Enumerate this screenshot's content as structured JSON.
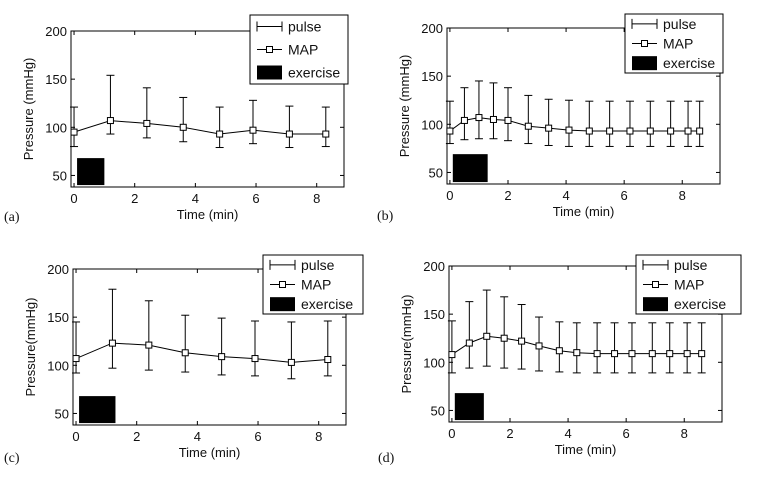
{
  "chart_data": [
    {
      "type": "line",
      "panel_label": "(a)",
      "xlabel": "Time (min)",
      "ylabel": "Pressure (mmHg)",
      "xlim": [
        -0.1,
        8.9
      ],
      "ylim": [
        38,
        200
      ],
      "xticks": [
        0,
        2,
        4,
        6,
        8
      ],
      "yticks": [
        50,
        100,
        150,
        200
      ],
      "legend": {
        "position": "top-right",
        "entries": [
          "pulse",
          "MAP",
          "exercise"
        ]
      },
      "exercise_interval": {
        "x": [
          0.1,
          1.0
        ],
        "y": [
          40,
          68
        ]
      },
      "x": [
        0,
        1.2,
        2.4,
        3.6,
        4.8,
        5.9,
        7.1,
        8.3
      ],
      "map": [
        95,
        107,
        104,
        100,
        93,
        97,
        93,
        93
      ],
      "pulse_high": [
        121,
        154,
        141,
        131,
        121,
        128,
        122,
        121
      ],
      "pulse_low": [
        80,
        93,
        89,
        85,
        79,
        83,
        79,
        80
      ]
    },
    {
      "type": "line",
      "panel_label": "(b)",
      "xlabel": "Time (min)",
      "ylabel": "Pressure (mmHg)",
      "xlim": [
        -0.1,
        9.3
      ],
      "ylim": [
        38,
        200
      ],
      "xticks": [
        0,
        2,
        4,
        6,
        8
      ],
      "yticks": [
        50,
        100,
        150,
        200
      ],
      "legend": {
        "position": "top-right",
        "entries": [
          "pulse",
          "MAP",
          "exercise"
        ]
      },
      "exercise_interval": {
        "x": [
          0.1,
          1.3
        ],
        "y": [
          40,
          69
        ]
      },
      "x": [
        0,
        0.5,
        1.0,
        1.5,
        2.0,
        2.7,
        3.4,
        4.1,
        4.8,
        5.5,
        6.2,
        6.9,
        7.6,
        8.2,
        8.6
      ],
      "map": [
        93,
        104,
        107,
        105,
        104,
        98,
        96,
        94,
        93,
        93,
        93,
        93,
        93,
        93,
        93
      ],
      "pulse_high": [
        124,
        138,
        145,
        143,
        138,
        130,
        126,
        125,
        124,
        124,
        124,
        124,
        124,
        124,
        124
      ],
      "pulse_low": [
        80,
        84,
        85,
        85,
        83,
        80,
        78,
        77,
        77,
        77,
        77,
        77,
        77,
        77,
        77
      ]
    },
    {
      "type": "line",
      "panel_label": "(c)",
      "xlabel": "Time (min)",
      "ylabel": "Pressure(mmHg)",
      "xlim": [
        -0.1,
        8.9
      ],
      "ylim": [
        38,
        200
      ],
      "xticks": [
        0,
        2,
        4,
        6,
        8
      ],
      "yticks": [
        50,
        100,
        150,
        200
      ],
      "legend": {
        "position": "top-right",
        "entries": [
          "pulse",
          "MAP",
          "exercise"
        ]
      },
      "exercise_interval": {
        "x": [
          0.1,
          1.3
        ],
        "y": [
          40,
          68
        ]
      },
      "x": [
        0,
        1.2,
        2.4,
        3.6,
        4.8,
        5.9,
        7.1,
        8.3
      ],
      "map": [
        107,
        123,
        121,
        113,
        109,
        107,
        103,
        106
      ],
      "pulse_high": [
        145,
        179,
        167,
        152,
        149,
        146,
        145,
        146
      ],
      "pulse_low": [
        92,
        97,
        95,
        93,
        90,
        89,
        86,
        89
      ]
    },
    {
      "type": "line",
      "panel_label": "(d)",
      "xlabel": "Time (min)",
      "ylabel": "Pressure(mmHg)",
      "xlim": [
        -0.1,
        9.3
      ],
      "ylim": [
        38,
        200
      ],
      "xticks": [
        0,
        2,
        4,
        6,
        8
      ],
      "yticks": [
        50,
        100,
        150,
        200
      ],
      "legend": {
        "position": "top-right",
        "entries": [
          "pulse",
          "MAP",
          "exercise"
        ]
      },
      "exercise_interval": {
        "x": [
          0.1,
          1.1
        ],
        "y": [
          40,
          68
        ]
      },
      "x": [
        0,
        0.6,
        1.2,
        1.8,
        2.4,
        3.0,
        3.7,
        4.3,
        5.0,
        5.6,
        6.2,
        6.9,
        7.5,
        8.1,
        8.6
      ],
      "map": [
        108,
        120,
        127,
        125,
        122,
        117,
        112,
        110,
        109,
        109,
        109,
        109,
        109,
        109,
        109
      ],
      "pulse_high": [
        143,
        163,
        175,
        168,
        160,
        147,
        142,
        141,
        141,
        141,
        141,
        141,
        141,
        141,
        141
      ],
      "pulse_low": [
        89,
        94,
        96,
        94,
        93,
        91,
        90,
        89,
        89,
        89,
        89,
        89,
        89,
        89,
        89
      ]
    }
  ]
}
